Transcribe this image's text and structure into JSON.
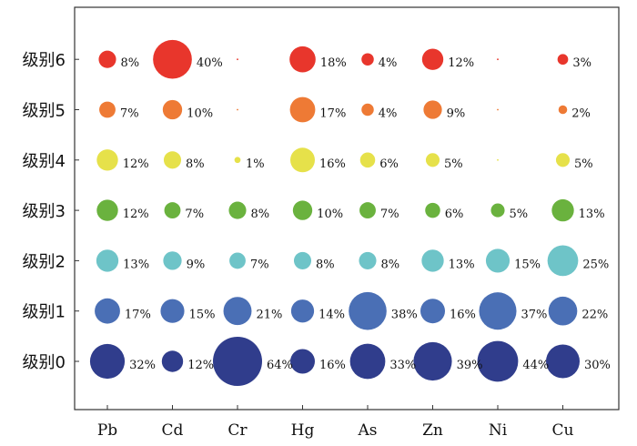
{
  "chart_data": {
    "type": "scatter",
    "title": "",
    "xlabel": "",
    "ylabel": "",
    "categories": [
      "Pb",
      "Cd",
      "Cr",
      "Hg",
      "As",
      "Zn",
      "Ni",
      "Cu"
    ],
    "levels": [
      "级别0",
      "级别1",
      "级别2",
      "级别3",
      "级别4",
      "级别5",
      "级别6"
    ],
    "series": [
      {
        "level": "级别0",
        "color": "#303d8c",
        "values": [
          32,
          12,
          64,
          16,
          33,
          39,
          44,
          30
        ],
        "labels": [
          "32%",
          "12%",
          "64%",
          "16%",
          "33%",
          "39%",
          "44%",
          "30%"
        ]
      },
      {
        "level": "级别1",
        "color": "#4a6fb5",
        "values": [
          17,
          15,
          21,
          14,
          38,
          16,
          37,
          22
        ],
        "labels": [
          "17%",
          "15%",
          "21%",
          "14%",
          "38%",
          "16%",
          "37%",
          "22%"
        ]
      },
      {
        "level": "级别2",
        "color": "#6ec4c8",
        "values": [
          13,
          9,
          7,
          8,
          8,
          13,
          15,
          25
        ],
        "labels": [
          "13%",
          "9%",
          "7%",
          "8%",
          "8%",
          "13%",
          "15%",
          "25%"
        ]
      },
      {
        "level": "级别3",
        "color": "#6ab23e",
        "values": [
          12,
          7,
          8,
          10,
          7,
          6,
          5,
          13
        ],
        "labels": [
          "12%",
          "7%",
          "8%",
          "10%",
          "7%",
          "6%",
          "5%",
          "13%"
        ]
      },
      {
        "level": "级别4",
        "color": "#e6e14a",
        "values": [
          12,
          8,
          1,
          16,
          6,
          5,
          0,
          5
        ],
        "labels": [
          "12%",
          "8%",
          "1%",
          "16%",
          "6%",
          "5%",
          "",
          "5%"
        ]
      },
      {
        "level": "级别5",
        "color": "#ee7a35",
        "values": [
          7,
          10,
          0,
          17,
          4,
          9,
          0,
          2
        ],
        "labels": [
          "7%",
          "10%",
          "",
          "17%",
          "4%",
          "9%",
          "",
          "2%"
        ]
      },
      {
        "level": "级别6",
        "color": "#e8362c",
        "values": [
          8,
          40,
          0,
          18,
          4,
          12,
          0,
          3
        ],
        "labels": [
          "8%",
          "40%",
          "",
          "18%",
          "4%",
          "12%",
          "",
          "3%"
        ]
      }
    ],
    "grid": false,
    "legend": "none"
  }
}
